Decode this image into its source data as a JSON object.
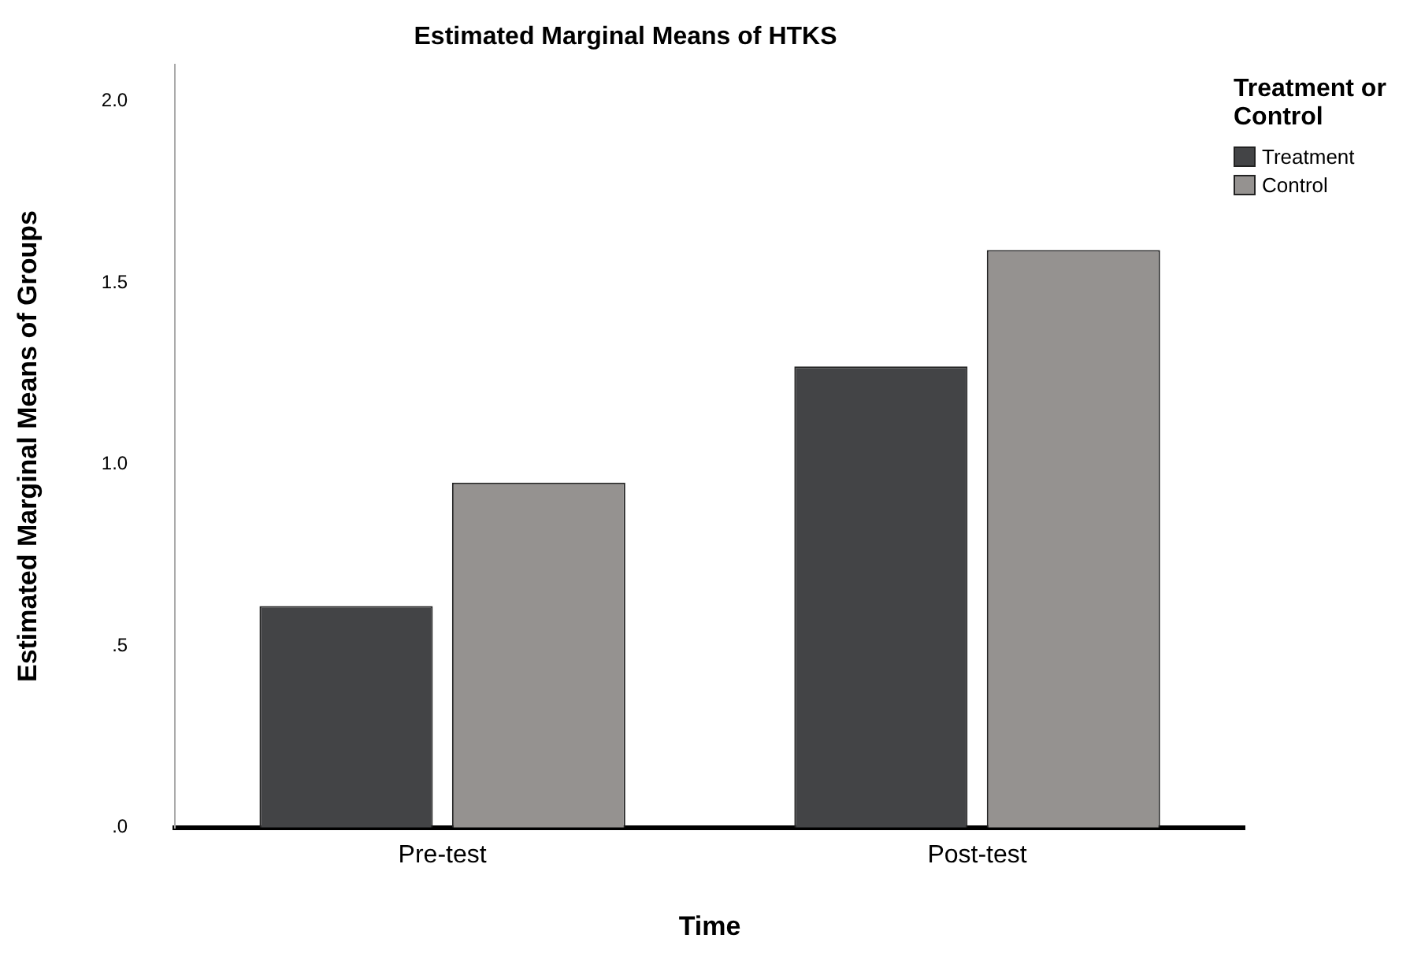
{
  "chart_data": {
    "type": "bar",
    "title": "Estimated Marginal Means of HTKS",
    "xlabel": "Time",
    "ylabel": "Estimated Marginal Means of Groups",
    "legend_title": "Treatment or Control",
    "categories": [
      "Pre-test",
      "Post-test"
    ],
    "series": [
      {
        "name": "Treatment",
        "color": "#434446",
        "values": [
          0.61,
          1.27
        ]
      },
      {
        "name": "Control",
        "color": "#959290",
        "values": [
          0.95,
          1.59
        ]
      }
    ],
    "ylim": [
      0,
      2.1
    ],
    "yticks": [
      {
        "value": 0,
        "label": ".0"
      },
      {
        "value": 0.5,
        "label": ".5"
      },
      {
        "value": 1,
        "label": "1.0"
      },
      {
        "value": 1.5,
        "label": "1.5"
      },
      {
        "value": 2,
        "label": "2.0"
      }
    ],
    "grid": false,
    "legend": "top right"
  }
}
